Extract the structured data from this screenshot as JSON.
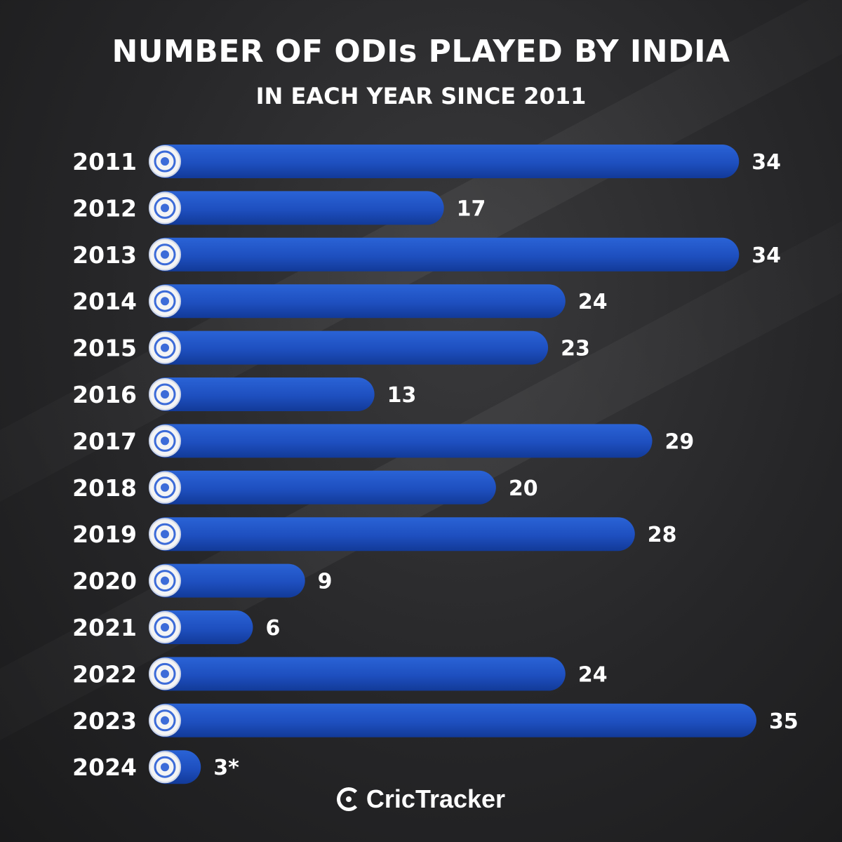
{
  "header": {
    "title": "NUMBER OF ODIs PLAYED BY INDIA",
    "subtitle": "IN EACH YEAR SINCE 2011"
  },
  "footer": {
    "brand": "CricTracker"
  },
  "colors": {
    "bar": "#1e4fbf",
    "bar_dark": "#123a98",
    "background": "#262628",
    "text": "#ffffff"
  },
  "chart_data": {
    "type": "bar",
    "orientation": "horizontal",
    "title": "NUMBER OF ODIs PLAYED BY INDIA",
    "subtitle": "IN EACH YEAR SINCE 2011",
    "xlabel": "",
    "ylabel": "",
    "xlim": [
      0,
      35
    ],
    "grid": false,
    "categories": [
      "2011",
      "2012",
      "2013",
      "2014",
      "2015",
      "2016",
      "2017",
      "2018",
      "2019",
      "2020",
      "2021",
      "2022",
      "2023",
      "2024"
    ],
    "values": [
      34,
      17,
      34,
      24,
      23,
      13,
      29,
      20,
      28,
      9,
      6,
      24,
      35,
      3
    ],
    "value_labels": [
      "34",
      "17",
      "34",
      "24",
      "23",
      "13",
      "29",
      "20",
      "28",
      "9",
      "6",
      "24",
      "35",
      "3*"
    ]
  }
}
